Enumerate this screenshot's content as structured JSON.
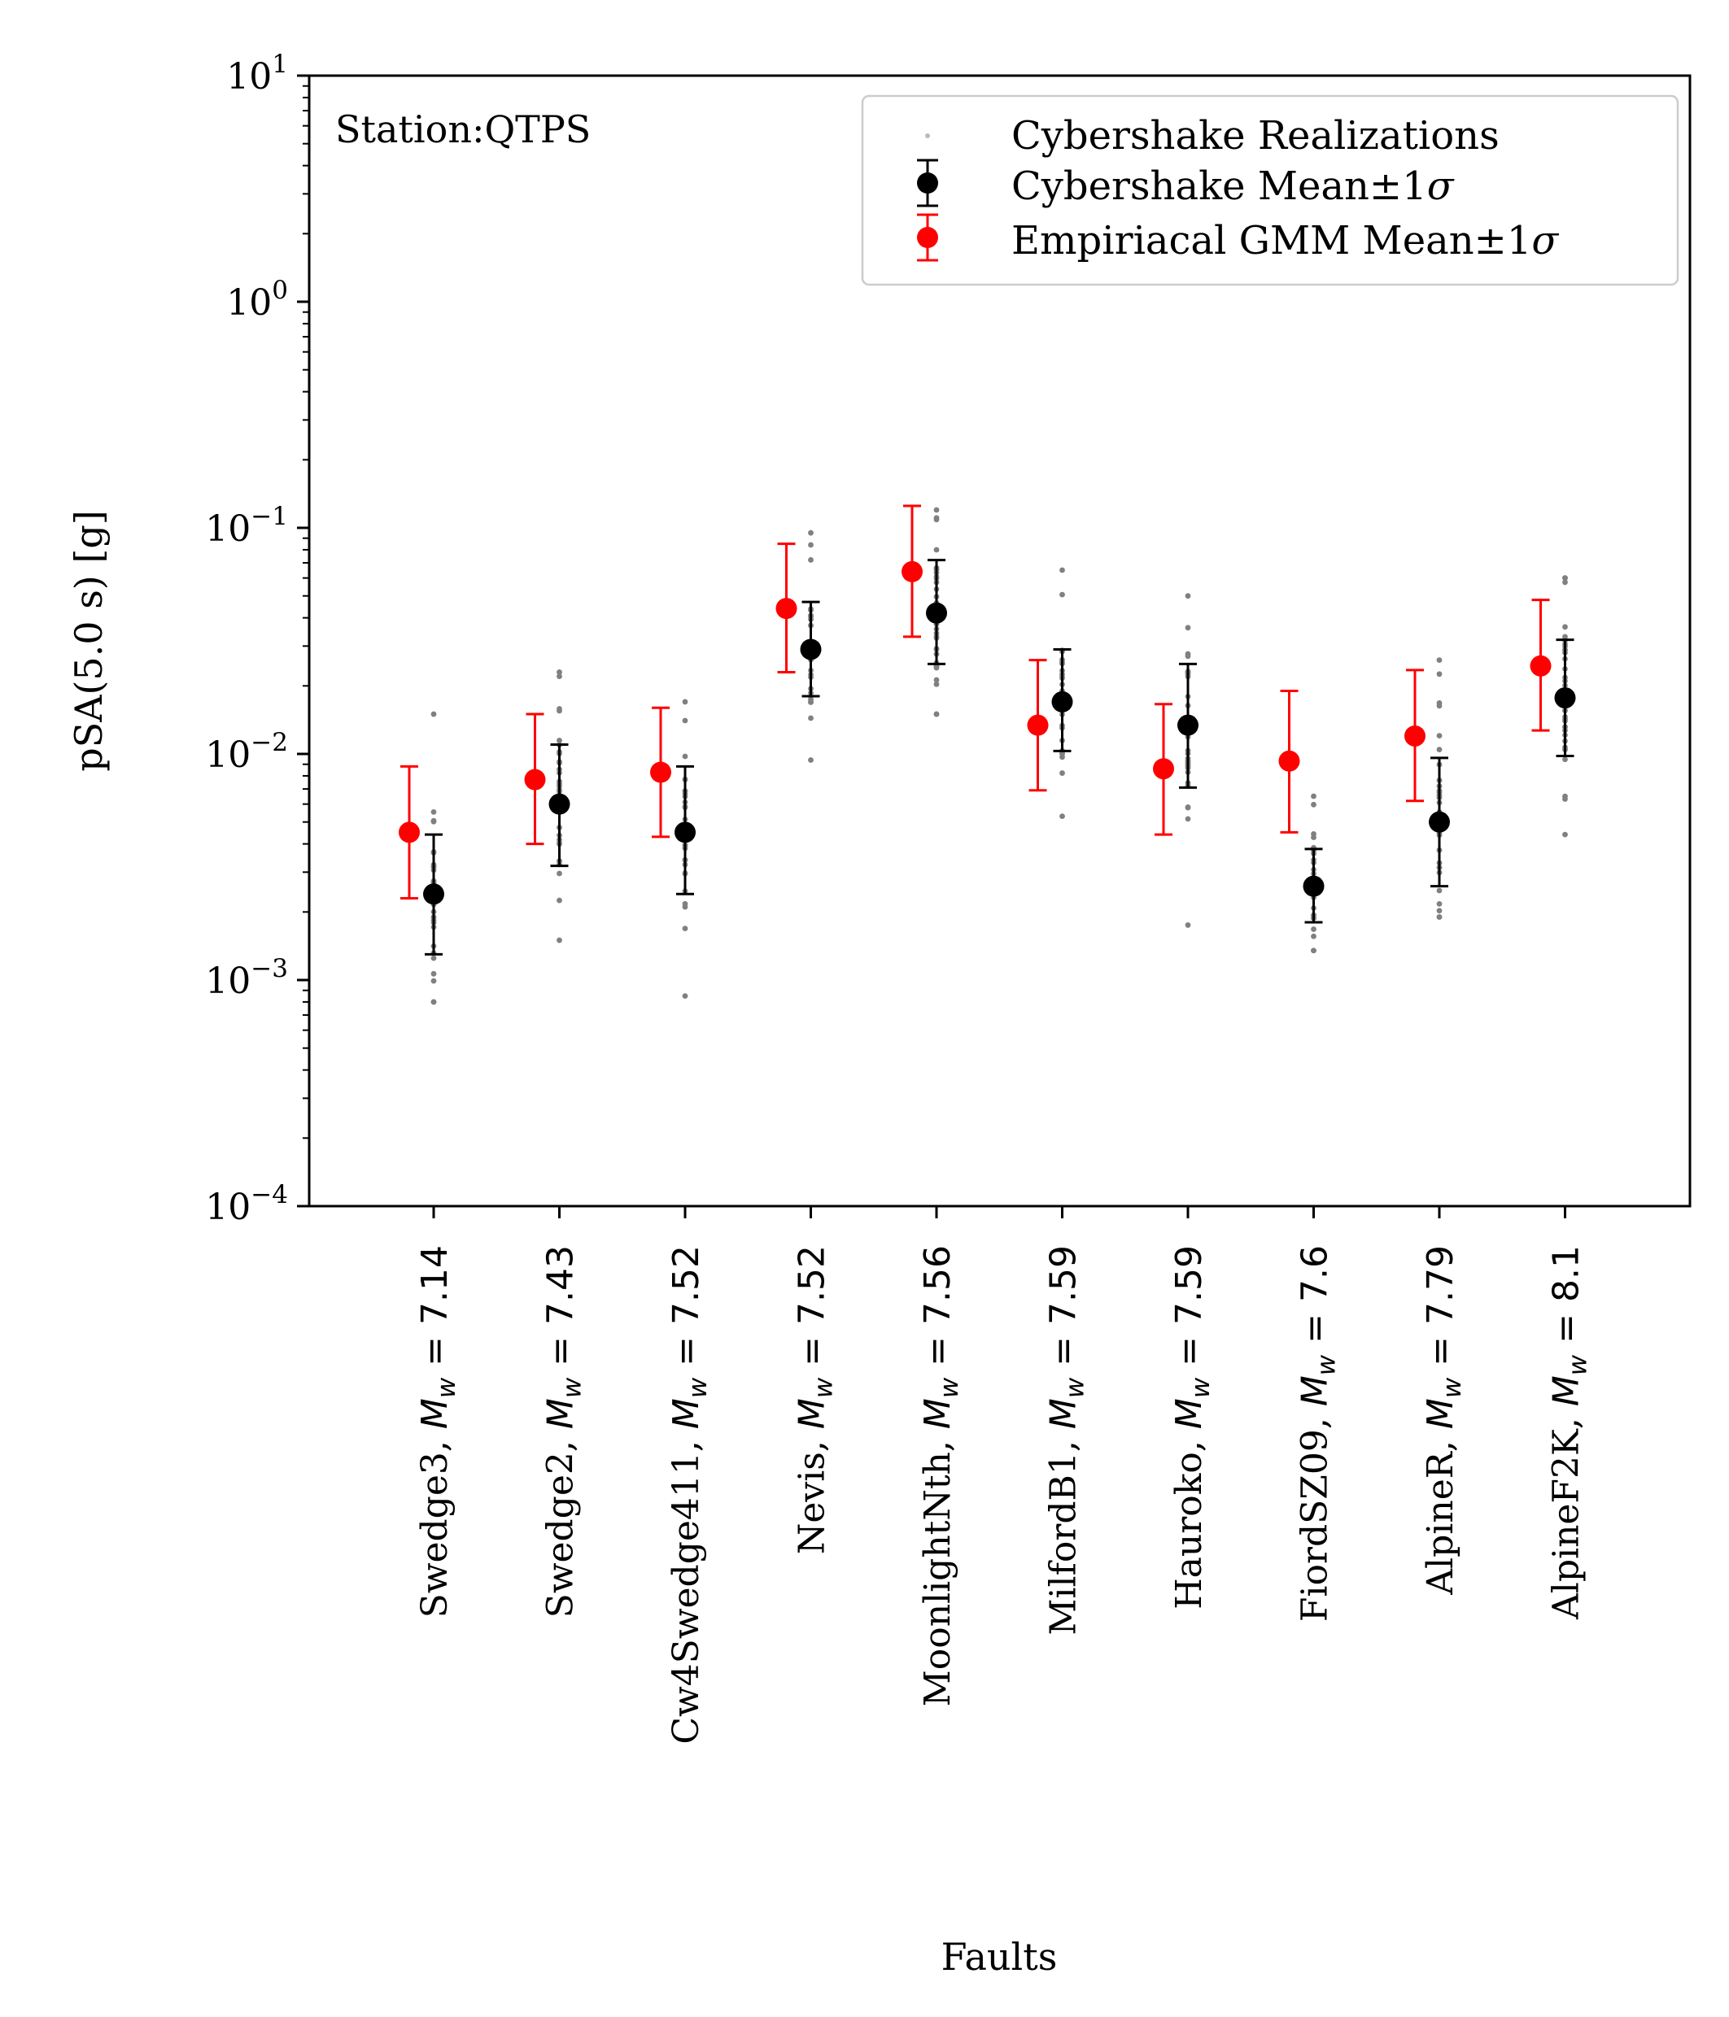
{
  "chart_data": {
    "type": "scatter",
    "xlabel": "Faults",
    "ylabel": "pSA(5.0 s) [g]",
    "yscale": "log",
    "ylim": [
      0.0001,
      10
    ],
    "yticks": [
      {
        "value": 10,
        "base": "10",
        "exp": "1"
      },
      {
        "value": 1,
        "base": "10",
        "exp": "0"
      },
      {
        "value": 0.1,
        "base": "10",
        "exp": "−1"
      },
      {
        "value": 0.01,
        "base": "10",
        "exp": "−2"
      },
      {
        "value": 0.001,
        "base": "10",
        "exp": "−3"
      },
      {
        "value": 0.0001,
        "base": "10",
        "exp": "−4"
      }
    ],
    "annotation": "Station:QTPS",
    "legend": {
      "placement": "upper right",
      "entries": [
        {
          "label": "Cybershake Realizations",
          "color": "#808080"
        },
        {
          "label": "Cybershake Mean±1",
          "sigma": "σ",
          "color": "#000000"
        },
        {
          "label": "Empiriacal GMM Mean±1",
          "sigma": "σ",
          "color": "#ff0000"
        }
      ]
    },
    "mw_symbol": "M",
    "mw_subscript": "w",
    "categories": [
      {
        "fault": "Swedge3",
        "mw": "7.14",
        "realizations": {
          "min": 0.0008,
          "max": 0.015,
          "n": 28
        },
        "cybershake": {
          "mean": 0.0024,
          "lower": 0.0013,
          "upper": 0.0044
        },
        "empirical": {
          "mean": 0.0045,
          "lower": 0.0023,
          "upper": 0.0088
        }
      },
      {
        "fault": "Swedge2",
        "mw": "7.43",
        "realizations": {
          "min": 0.0015,
          "max": 0.023,
          "n": 32
        },
        "cybershake": {
          "mean": 0.006,
          "lower": 0.0032,
          "upper": 0.011
        },
        "empirical": {
          "mean": 0.0077,
          "lower": 0.004,
          "upper": 0.015
        }
      },
      {
        "fault": "Cw4Swedge411",
        "mw": "7.52",
        "realizations": {
          "min": 0.00085,
          "max": 0.017,
          "n": 32
        },
        "cybershake": {
          "mean": 0.0045,
          "lower": 0.0024,
          "upper": 0.0088
        },
        "empirical": {
          "mean": 0.0083,
          "lower": 0.0043,
          "upper": 0.016
        }
      },
      {
        "fault": "Nevis",
        "mw": "7.52",
        "realizations": {
          "min": 0.0094,
          "max": 0.095,
          "n": 32
        },
        "cybershake": {
          "mean": 0.029,
          "lower": 0.018,
          "upper": 0.047
        },
        "empirical": {
          "mean": 0.044,
          "lower": 0.023,
          "upper": 0.085
        }
      },
      {
        "fault": "MoonlightNth",
        "mw": "7.56",
        "realizations": {
          "min": 0.015,
          "max": 0.12,
          "n": 36
        },
        "cybershake": {
          "mean": 0.042,
          "lower": 0.025,
          "upper": 0.072
        },
        "empirical": {
          "mean": 0.064,
          "lower": 0.033,
          "upper": 0.125
        }
      },
      {
        "fault": "MilfordB1",
        "mw": "7.59",
        "realizations": {
          "min": 0.0053,
          "max": 0.065,
          "n": 30
        },
        "cybershake": {
          "mean": 0.017,
          "lower": 0.0103,
          "upper": 0.029
        },
        "empirical": {
          "mean": 0.0134,
          "lower": 0.0069,
          "upper": 0.026
        }
      },
      {
        "fault": "Hauroko",
        "mw": "7.59",
        "realizations": {
          "min": 0.00175,
          "max": 0.05,
          "n": 30
        },
        "cybershake": {
          "mean": 0.0134,
          "lower": 0.0071,
          "upper": 0.025
        },
        "empirical": {
          "mean": 0.0086,
          "lower": 0.0044,
          "upper": 0.0166
        }
      },
      {
        "fault": "FiordSZ09",
        "mw": "7.6",
        "realizations": {
          "min": 0.00135,
          "max": 0.0065,
          "n": 30
        },
        "cybershake": {
          "mean": 0.0026,
          "lower": 0.0018,
          "upper": 0.0038
        },
        "empirical": {
          "mean": 0.0093,
          "lower": 0.0045,
          "upper": 0.019
        }
      },
      {
        "fault": "AlpineR",
        "mw": "7.79",
        "realizations": {
          "min": 0.0019,
          "max": 0.026,
          "n": 32
        },
        "cybershake": {
          "mean": 0.005,
          "lower": 0.0026,
          "upper": 0.0096
        },
        "empirical": {
          "mean": 0.012,
          "lower": 0.0062,
          "upper": 0.0235
        }
      },
      {
        "fault": "AlpineF2K",
        "mw": "8.1",
        "realizations": {
          "min": 0.0044,
          "max": 0.06,
          "n": 34
        },
        "cybershake": {
          "mean": 0.0177,
          "lower": 0.0098,
          "upper": 0.032
        },
        "empirical": {
          "mean": 0.0245,
          "lower": 0.0127,
          "upper": 0.048
        }
      }
    ]
  }
}
